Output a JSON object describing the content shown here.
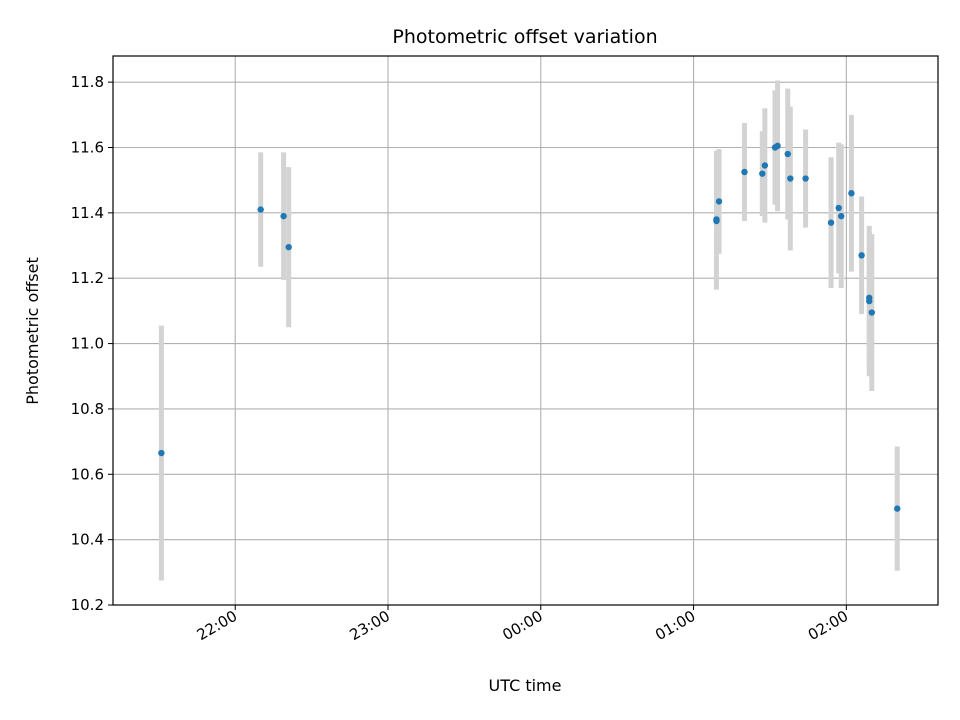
{
  "chart_data": {
    "type": "scatter",
    "title": "Photometric offset variation",
    "xlabel": "UTC time",
    "ylabel": "Photometric offset",
    "x_range": [
      "21:12",
      "02:36"
    ],
    "ylim": [
      10.2,
      11.88
    ],
    "x_tick_labels": [
      "22:00",
      "23:00",
      "00:00",
      "01:00",
      "02:00"
    ],
    "y_ticks": [
      10.2,
      10.4,
      10.6,
      10.8,
      11.0,
      11.2,
      11.4,
      11.6,
      11.8
    ],
    "y_tick_labels": [
      "10.2",
      "10.4",
      "10.6",
      "10.8",
      "11.0",
      "11.2",
      "11.4",
      "11.6",
      "11.8"
    ],
    "grid": true,
    "marker_color": "#1f77b4",
    "errorbar_color": "#d3d3d3",
    "points": [
      {
        "x": "21:31",
        "y": 10.665,
        "err": 0.39
      },
      {
        "x": "22:10",
        "y": 11.41,
        "err": 0.175
      },
      {
        "x": "22:19",
        "y": 11.39,
        "err": 0.195
      },
      {
        "x": "22:21",
        "y": 11.295,
        "err": 0.245
      },
      {
        "x": "01:09",
        "y": 11.375,
        "err": 0.21
      },
      {
        "x": "01:09",
        "y": 11.38,
        "err": 0.21
      },
      {
        "x": "01:10",
        "y": 11.435,
        "err": 0.16
      },
      {
        "x": "01:20",
        "y": 11.525,
        "err": 0.15
      },
      {
        "x": "01:27",
        "y": 11.52,
        "err": 0.13
      },
      {
        "x": "01:28",
        "y": 11.545,
        "err": 0.175
      },
      {
        "x": "01:32",
        "y": 11.6,
        "err": 0.175
      },
      {
        "x": "01:33",
        "y": 11.605,
        "err": 0.2
      },
      {
        "x": "01:37",
        "y": 11.58,
        "err": 0.2
      },
      {
        "x": "01:38",
        "y": 11.505,
        "err": 0.22
      },
      {
        "x": "01:44",
        "y": 11.505,
        "err": 0.15
      },
      {
        "x": "01:54",
        "y": 11.37,
        "err": 0.2
      },
      {
        "x": "01:57",
        "y": 11.415,
        "err": 0.2
      },
      {
        "x": "01:58",
        "y": 11.39,
        "err": 0.22
      },
      {
        "x": "02:02",
        "y": 11.46,
        "err": 0.24
      },
      {
        "x": "02:06",
        "y": 11.27,
        "err": 0.18
      },
      {
        "x": "02:09",
        "y": 11.13,
        "err": 0.23
      },
      {
        "x": "02:09",
        "y": 11.14,
        "err": 0.2
      },
      {
        "x": "02:10",
        "y": 11.095,
        "err": 0.24
      },
      {
        "x": "02:20",
        "y": 10.495,
        "err": 0.19
      }
    ]
  }
}
